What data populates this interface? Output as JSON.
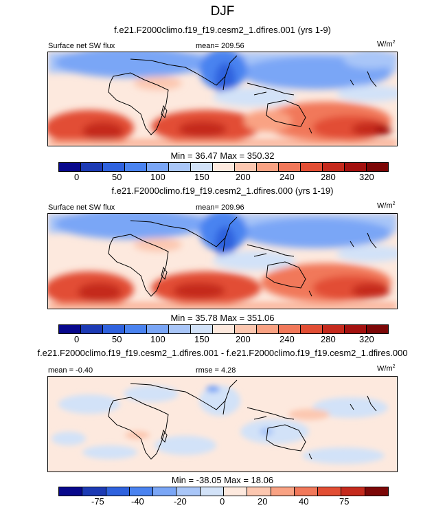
{
  "season_title": "DJF",
  "colors": {
    "abs_scale": [
      "#08088c",
      "#1c3ab4",
      "#2f62de",
      "#4a83f0",
      "#7aa6f6",
      "#a9c6f8",
      "#d2e2f8",
      "#fde9de",
      "#fcc7b0",
      "#f9a283",
      "#f1785a",
      "#e24e34",
      "#c52a1d",
      "#a3110f",
      "#7c0707"
    ],
    "diff_scale": [
      "#08088c",
      "#1c3ab4",
      "#2f62de",
      "#4a83f0",
      "#7aa6f6",
      "#a9c6f8",
      "#d2e2f8",
      "#fde9de",
      "#fcc7b0",
      "#f9a283",
      "#f1785a",
      "#e24e34",
      "#c52a1d",
      "#7c0707"
    ]
  },
  "chart_data": [
    {
      "type": "heatmap",
      "title": "f.e21.F2000climo.f19_f19.cesm2_1.dfires.001 (yrs 1-9)",
      "left_label": "Surface net SW flux",
      "center_label": "mean= 209.56",
      "units_base": "W/m",
      "units_exp": "2",
      "min_max": "Min =  36.47 Max = 350.32",
      "colorbar_ticks": [
        "0",
        "50",
        "100",
        "150",
        "200",
        "240",
        "280",
        "320"
      ],
      "levels": [
        0,
        25,
        50,
        75,
        100,
        125,
        150,
        175,
        200,
        220,
        240,
        260,
        280,
        300,
        320
      ],
      "min": 36.47,
      "max": 350.32,
      "mean": 209.56
    },
    {
      "type": "heatmap",
      "title": "f.e21.F2000climo.f19_f19.cesm2_1.dfires.000 (yrs 1-19)",
      "left_label": "Surface net SW flux",
      "center_label": "mean= 209.96",
      "units_base": "W/m",
      "units_exp": "2",
      "min_max": "Min =  35.78 Max = 351.06",
      "colorbar_ticks": [
        "0",
        "50",
        "100",
        "150",
        "200",
        "240",
        "280",
        "320"
      ],
      "levels": [
        0,
        25,
        50,
        75,
        100,
        125,
        150,
        175,
        200,
        220,
        240,
        260,
        280,
        300,
        320
      ],
      "min": 35.78,
      "max": 351.06,
      "mean": 209.96
    },
    {
      "type": "heatmap",
      "title": "f.e21.F2000climo.f19_f19.cesm2_1.dfires.001 - f.e21.F2000climo.f19_f19.cesm2_1.dfires.000",
      "left_label": "mean =  -0.40",
      "center_label": "rmse =   4.28",
      "units_base": "W/m",
      "units_exp": "2",
      "min_max": "Min = -38.05 Max =  18.06",
      "colorbar_ticks": [
        "-75",
        "-40",
        "-20",
        "0",
        "20",
        "40",
        "75"
      ],
      "levels": [
        -100,
        -75,
        -50,
        -40,
        -30,
        -20,
        -10,
        0,
        10,
        20,
        30,
        40,
        50,
        75
      ],
      "min": -38.05,
      "max": 18.06,
      "mean": -0.4,
      "rmse": 4.28
    }
  ]
}
